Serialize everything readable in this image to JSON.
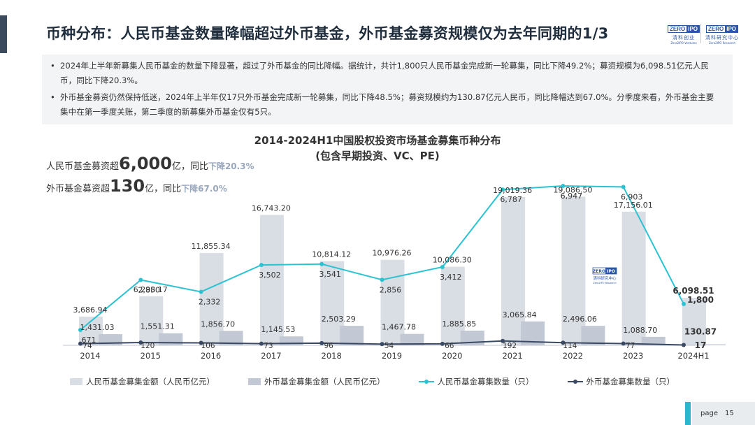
{
  "header": {
    "title": "币种分布：人民币基金数量降幅超过外币基金，外币基金募资规模仅为去年同期的1/3",
    "logo1": {
      "a": "ZERO",
      "b": "IPO",
      "cn": "清科创业",
      "en": "Zero2IPO Ventures"
    },
    "logo2": {
      "a": "ZERO",
      "b": "IPO",
      "cn": "清科研究中心",
      "en": "Zero2IPO Research"
    }
  },
  "bullets": [
    "2024年上半年新募集人民币基金的数量下降显著，超过了外币基金的同比降幅。据统计，共计1,800只人民币基金完成新一轮募集，同比下降49.2%；募资规模为6,098.51亿元人民币，同比下降20.3%。",
    "外币基金募资仍然保持低迷，2024年上半年仅17只外币基金完成新一轮募集，同比下降48.5%；募资规模约为130.87亿元人民币，同比降幅达到67.0%。分季度来看，外币基金主要集中在第一季度关账，第二季度的新募集外币基金仅有5只。"
  ],
  "summary": {
    "line1": {
      "pre": "人民币基金募资超",
      "num": "6,000",
      "unit": "亿，同比",
      "hl": "下降20.3%"
    },
    "line2": {
      "pre": "外币基金募资超",
      "num": "130",
      "unit": "亿，同比",
      "hl": "下降67.0%"
    }
  },
  "watermark": {
    "a": "ZERO",
    "b": "IPO",
    "cn": "清科研究中心",
    "en": "Zero2IPO Research"
  },
  "chart_data": {
    "type": "bar",
    "title": "2014-2024H1中国股权投资市场基金募集币种分布",
    "subtitle": "(包含早期投资、VC、PE)",
    "categories": [
      "2014",
      "2015",
      "2016",
      "2017",
      "2018",
      "2019",
      "2020",
      "2021",
      "2022",
      "2023",
      "2024H1"
    ],
    "bars": [
      {
        "name": "人民币基金募集金额（人民币亿元）",
        "color": "#d9dde4",
        "values": [
          3686.94,
          6298.17,
          11855.34,
          16743.2,
          10814.12,
          10976.26,
          10086.3,
          19019.36,
          19086.5,
          17156.01,
          6098.51
        ],
        "labels": [
          "3,686.94",
          "6,298.17",
          "11,855.34",
          "16,743.20",
          "10,814.12",
          "10,976.26",
          "10,086.30",
          "19,019.36",
          "19,086.50",
          "17,156.01",
          "6,098.51"
        ]
      },
      {
        "name": "外币基金募集金额（人民币亿元）",
        "color": "#c3c9d4",
        "values": [
          1431.03,
          1551.31,
          1856.7,
          1145.53,
          2503.29,
          1467.78,
          1885.85,
          3065.84,
          2496.06,
          1088.7,
          130.87
        ],
        "labels": [
          "1,431.03",
          "1,551.31",
          "1,856.70",
          "1,145.53",
          "2,503.29",
          "1,467.78",
          "1,885.85",
          "3,065.84",
          "2,496.06",
          "1,088.70",
          "130.87"
        ]
      }
    ],
    "lines": [
      {
        "name": "人民币基金募集数量（只）",
        "color": "#2bc3d1",
        "values": [
          671,
          2850,
          2332,
          3502,
          3541,
          2856,
          3412,
          6787,
          6947,
          6903,
          1800
        ],
        "labels": [
          "671",
          "2,850",
          "2,332",
          "3,502",
          "3,541",
          "2,856",
          "3,412",
          "6,787",
          "6,947",
          "6,903",
          "1,800"
        ]
      },
      {
        "name": "外币基金募集数量（只）",
        "color": "#3b4a64",
        "values": [
          74,
          120,
          106,
          73,
          96,
          54,
          66,
          192,
          114,
          77,
          17
        ],
        "labels": [
          "74",
          "120",
          "106",
          "73",
          "96",
          "54",
          "66",
          "192",
          "114",
          "77",
          "17"
        ]
      }
    ],
    "bar_ylim": [
      0,
      21000
    ],
    "line_ylim": [
      0,
      7800
    ],
    "legend_position": "bottom",
    "grid": false
  },
  "footer": {
    "page_label": "page",
    "page_number": "15",
    "accent_color": "#2ab8c8"
  }
}
